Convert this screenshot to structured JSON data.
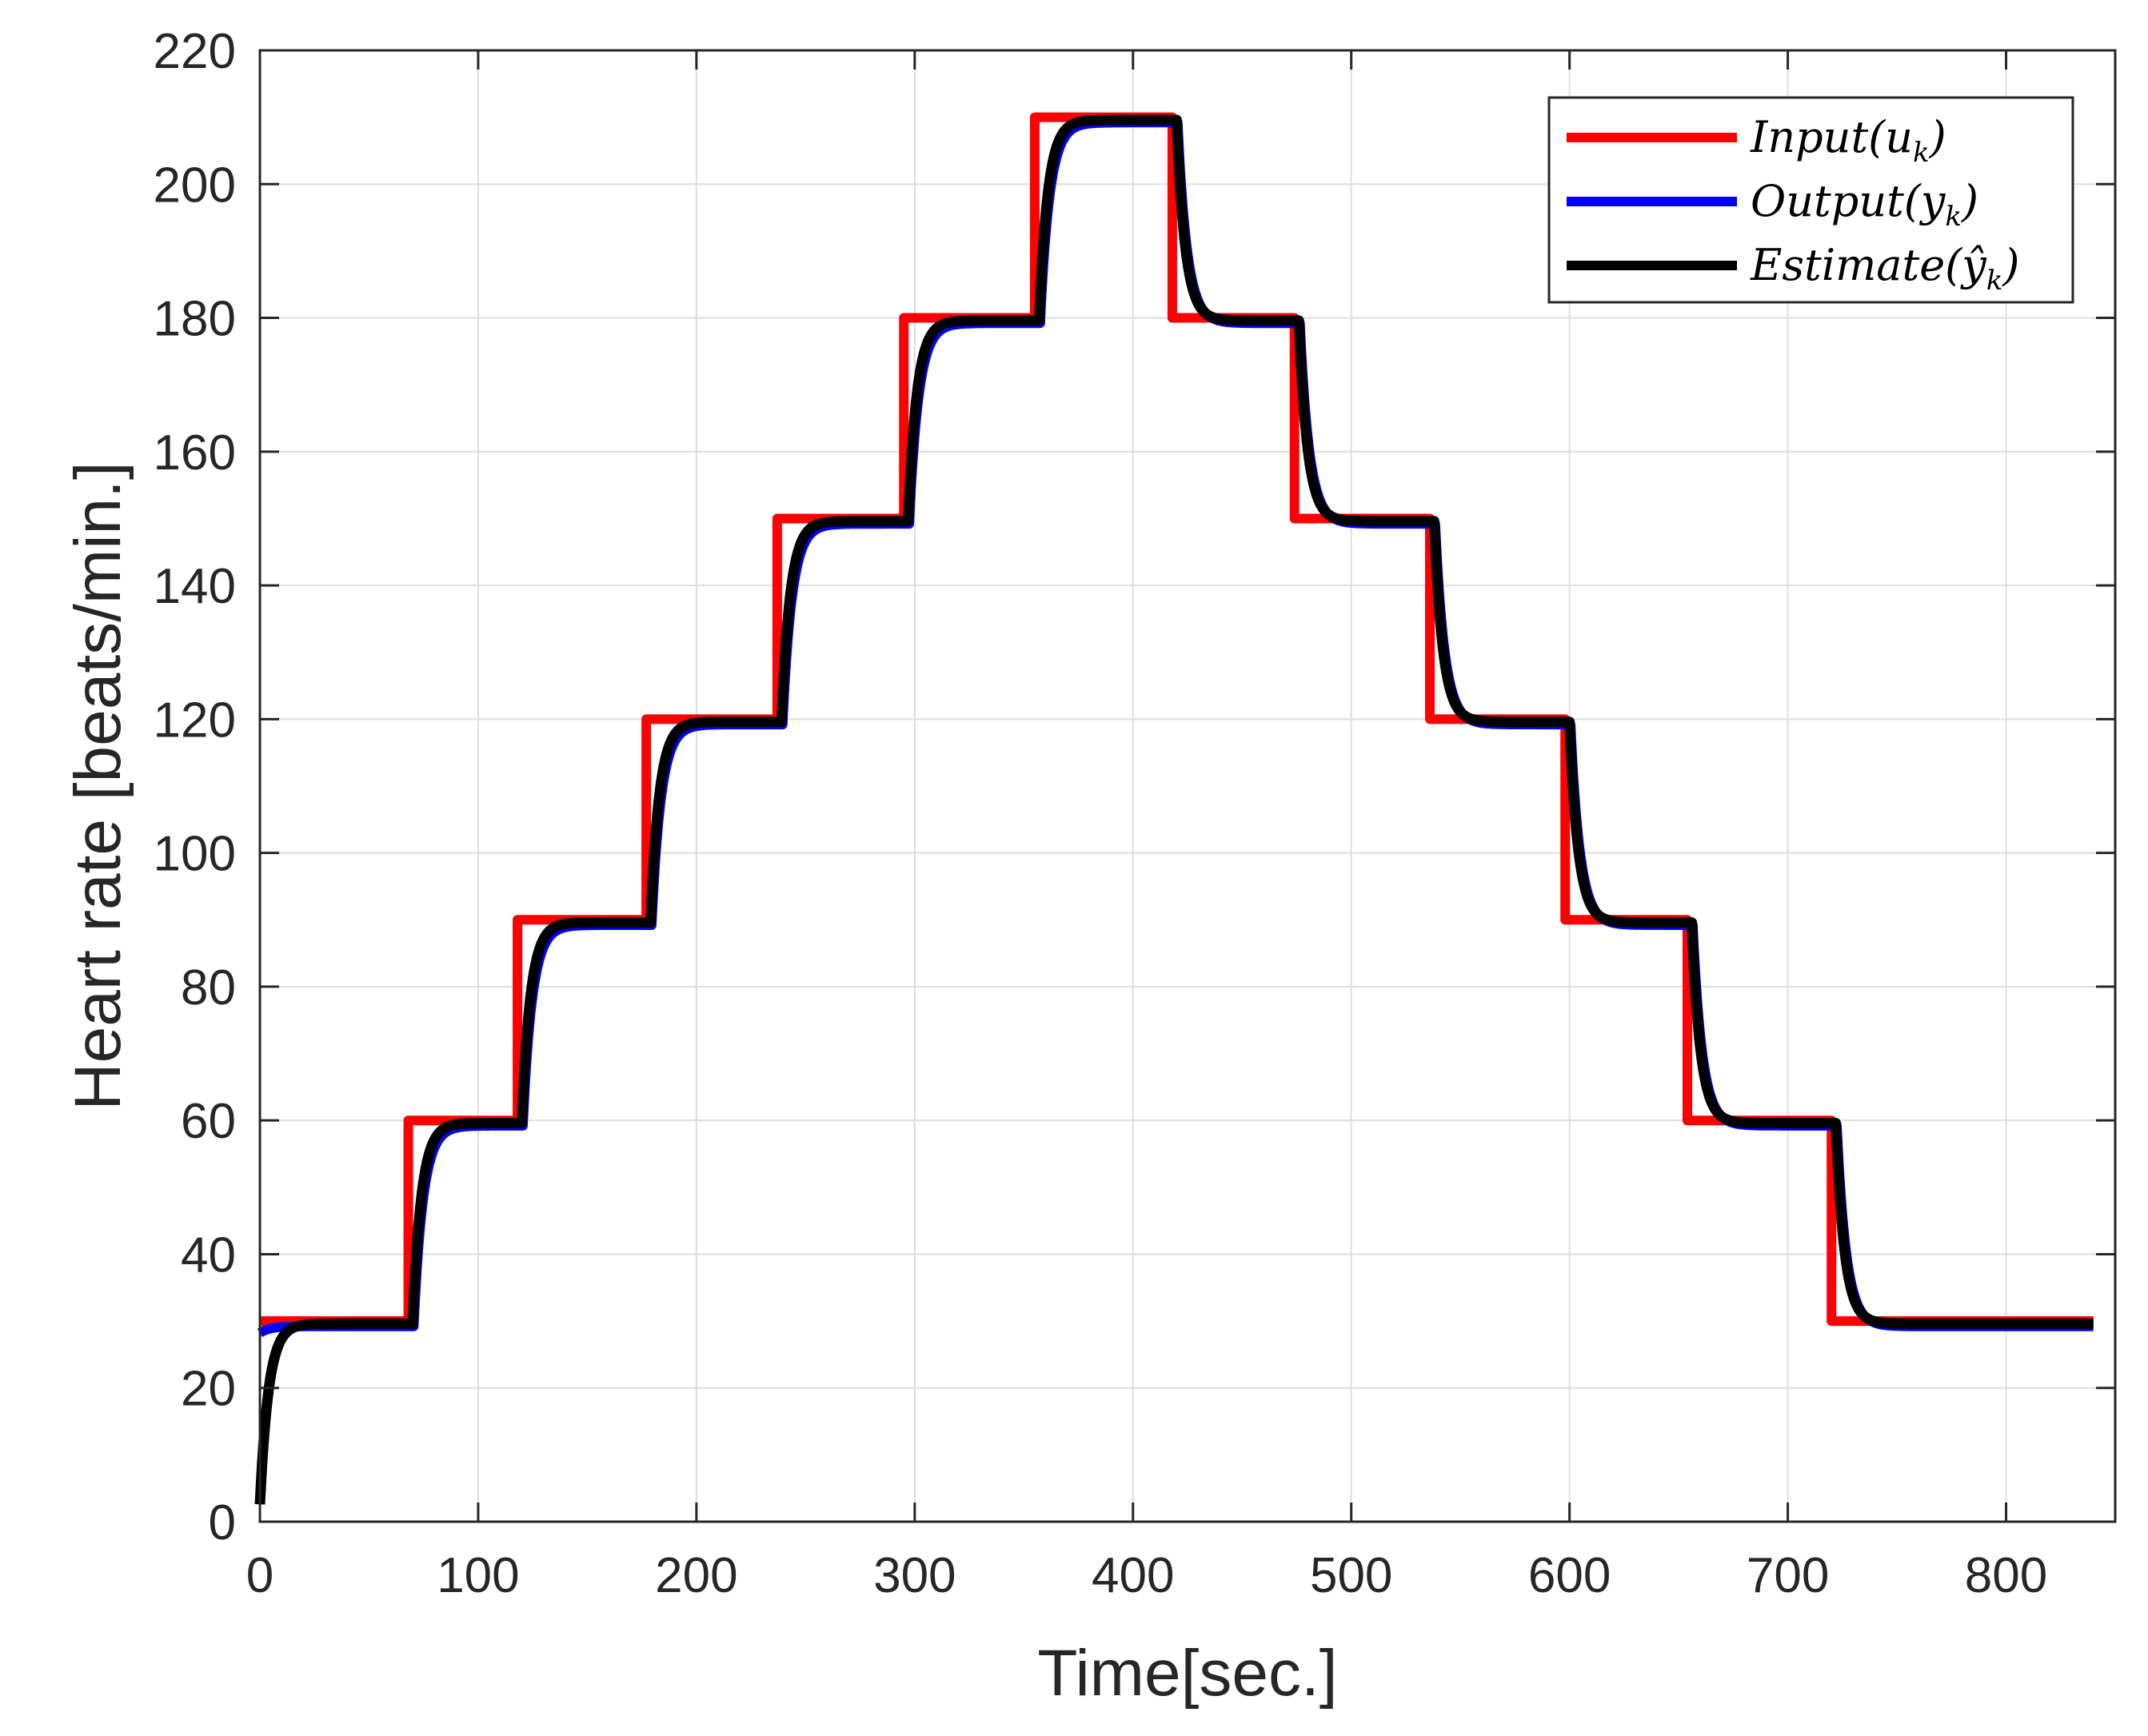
{
  "chart_data": {
    "type": "line",
    "title": "",
    "xlabel": "Time[sec.]",
    "ylabel": "Heart rate [beats/min.]",
    "xlim": [
      0,
      850
    ],
    "ylim": [
      0,
      220
    ],
    "xticks": [
      0,
      100,
      200,
      300,
      400,
      500,
      600,
      700,
      800
    ],
    "yticks": [
      0,
      20,
      40,
      60,
      80,
      100,
      120,
      140,
      160,
      180,
      200,
      220
    ],
    "grid": true,
    "legend_position": "top-right",
    "input_steps": {
      "times": [
        0,
        68,
        118,
        177,
        237,
        295,
        355,
        418,
        474,
        536,
        598,
        654,
        720,
        840
      ],
      "levels": [
        30,
        60,
        90,
        120,
        150,
        180,
        210,
        180,
        150,
        120,
        90,
        60,
        30
      ]
    },
    "series": [
      {
        "name": "Input(u_k)",
        "legend_label": "Input(u",
        "legend_sub": "k",
        "legend_tail": ")",
        "color": "#ff0000",
        "kind": "step",
        "lag": 0,
        "tau": 0,
        "start": 30,
        "offset": 0
      },
      {
        "name": "Output(y_k)",
        "legend_label": "Output(y",
        "legend_sub": "k",
        "legend_tail": ")",
        "color": "#0000ff",
        "kind": "response",
        "lag": 2.5,
        "tau": 4.3,
        "start": 29,
        "offset": -0.8
      },
      {
        "name": "Estimate(ŷ_k)",
        "legend_label": "Estimate(ŷ",
        "legend_sub": "k",
        "legend_tail": ")",
        "color": "#000000",
        "kind": "response",
        "lag": 1.8,
        "tau": 4.0,
        "start": 3,
        "offset": -0.4
      }
    ]
  }
}
